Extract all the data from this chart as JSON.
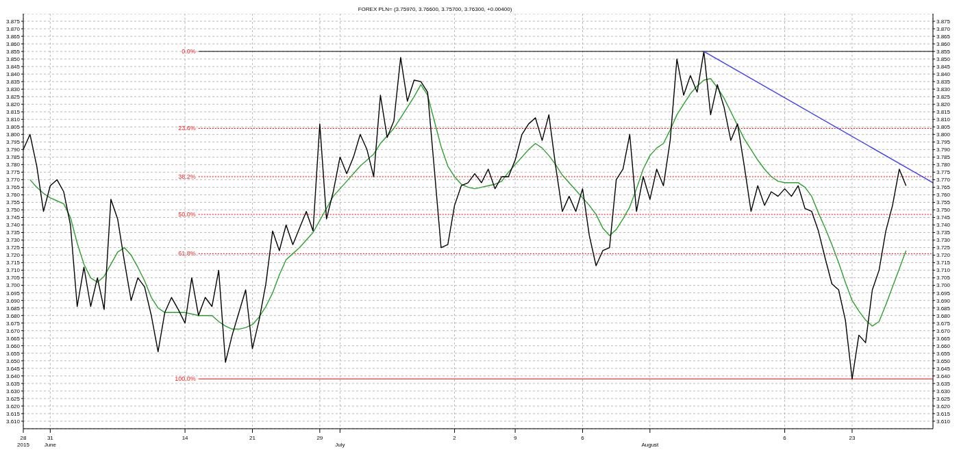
{
  "chart_data": {
    "type": "line",
    "title": "FOREX PLN= (3.75970, 3.76600, 3.75700, 3.76300, +0.00400)",
    "marker": "none",
    "grid": true,
    "categories": [
      "28\n2015",
      null,
      null,
      null,
      "31\nJune",
      null,
      null,
      null,
      null,
      null,
      null,
      null,
      null,
      null,
      null,
      null,
      null,
      null,
      null,
      null,
      null,
      null,
      null,
      null,
      "14",
      null,
      null,
      null,
      null,
      null,
      null,
      null,
      null,
      null,
      "21",
      null,
      null,
      null,
      null,
      null,
      null,
      null,
      null,
      null,
      "29",
      null,
      null,
      "\nJuly",
      null,
      null,
      null,
      null,
      null,
      null,
      null,
      null,
      null,
      null,
      null,
      null,
      null,
      null,
      null,
      null,
      "2",
      null,
      null,
      null,
      null,
      null,
      null,
      null,
      null,
      "9",
      null,
      null,
      null,
      null,
      null,
      null,
      null,
      null,
      null,
      "6",
      null,
      null,
      null,
      null,
      null,
      null,
      null,
      null,
      null,
      "\nAugust",
      null,
      null,
      null,
      null,
      null,
      null,
      null,
      null,
      null,
      null,
      null,
      null,
      null,
      null,
      null,
      null,
      null,
      null,
      null,
      "6",
      null,
      null,
      null,
      null,
      null,
      null,
      null,
      null,
      null,
      "23",
      null,
      null,
      null,
      null,
      null,
      null,
      null,
      null,
      null,
      null,
      null,
      null
    ],
    "ylim": [
      3.605,
      3.88
    ],
    "yticks": [
      {
        "value": 3.61,
        "label": "3.610"
      },
      {
        "value": 3.615,
        "label": "3.615"
      },
      {
        "value": 3.62,
        "label": "3.620"
      },
      {
        "value": 3.625,
        "label": "3.625"
      },
      {
        "value": 3.63,
        "label": "3.630"
      },
      {
        "value": 3.635,
        "label": "3.635"
      },
      {
        "value": 3.64,
        "label": "3.640"
      },
      {
        "value": 3.645,
        "label": "3.645"
      },
      {
        "value": 3.65,
        "label": "3.650"
      },
      {
        "value": 3.655,
        "label": "3.655"
      },
      {
        "value": 3.66,
        "label": "3.660"
      },
      {
        "value": 3.665,
        "label": "3.665"
      },
      {
        "value": 3.67,
        "label": "3.670"
      },
      {
        "value": 3.675,
        "label": "3.675"
      },
      {
        "value": 3.68,
        "label": "3.680"
      },
      {
        "value": 3.685,
        "label": "3.685"
      },
      {
        "value": 3.69,
        "label": "3.690"
      },
      {
        "value": 3.695,
        "label": "3.695"
      },
      {
        "value": 3.7,
        "label": "3.700"
      },
      {
        "value": 3.705,
        "label": "3.705"
      },
      {
        "value": 3.71,
        "label": "3.710"
      },
      {
        "value": 3.715,
        "label": "3.715"
      },
      {
        "value": 3.72,
        "label": "3.720"
      },
      {
        "value": 3.725,
        "label": "3.725"
      },
      {
        "value": 3.73,
        "label": "3.730"
      },
      {
        "value": 3.735,
        "label": "3.735"
      },
      {
        "value": 3.74,
        "label": "3.740"
      },
      {
        "value": 3.745,
        "label": "3.745"
      },
      {
        "value": 3.75,
        "label": "3.750"
      },
      {
        "value": 3.755,
        "label": "3.755"
      },
      {
        "value": 3.76,
        "label": "3.760"
      },
      {
        "value": 3.765,
        "label": "3.765"
      },
      {
        "value": 3.77,
        "label": "3.770"
      },
      {
        "value": 3.775,
        "label": "3.775"
      },
      {
        "value": 3.78,
        "label": "3.780"
      },
      {
        "value": 3.785,
        "label": "3.785"
      },
      {
        "value": 3.79,
        "label": "3.790"
      },
      {
        "value": 3.795,
        "label": "3.795"
      },
      {
        "value": 3.8,
        "label": "3.800"
      },
      {
        "value": 3.805,
        "label": "3.805"
      },
      {
        "value": 3.81,
        "label": "3.810"
      },
      {
        "value": 3.815,
        "label": "3.815"
      },
      {
        "value": 3.82,
        "label": "3.820"
      },
      {
        "value": 3.825,
        "label": "3.825"
      },
      {
        "value": 3.83,
        "label": "3.830"
      },
      {
        "value": 3.835,
        "label": "3.835"
      },
      {
        "value": 3.84,
        "label": "3.840"
      },
      {
        "value": 3.845,
        "label": "3.845"
      },
      {
        "value": 3.85,
        "label": "3.850"
      },
      {
        "value": 3.855,
        "label": "3.855"
      },
      {
        "value": 3.86,
        "label": "3.860"
      },
      {
        "value": 3.865,
        "label": "3.865"
      },
      {
        "value": 3.87,
        "label": "3.870"
      },
      {
        "value": 3.875,
        "label": "3.875"
      }
    ],
    "y2lim": [
      3.605,
      3.88
    ],
    "y2ticks": [
      {
        "value": 3.61,
        "label": "3.610"
      },
      {
        "value": 3.615,
        "label": "3.615"
      },
      {
        "value": 3.62,
        "label": "3.620"
      },
      {
        "value": 3.625,
        "label": "3.625"
      },
      {
        "value": 3.63,
        "label": "3.630"
      },
      {
        "value": 3.635,
        "label": "3.635"
      },
      {
        "value": 3.64,
        "label": "3.640"
      },
      {
        "value": 3.645,
        "label": "3.645"
      },
      {
        "value": 3.65,
        "label": "3.650"
      },
      {
        "value": 3.655,
        "label": "3.655"
      },
      {
        "value": 3.66,
        "label": "3.660"
      },
      {
        "value": 3.665,
        "label": "3.665"
      },
      {
        "value": 3.67,
        "label": "3.670"
      },
      {
        "value": 3.675,
        "label": "3.675"
      },
      {
        "value": 3.68,
        "label": "3.680"
      },
      {
        "value": 3.685,
        "label": "3.685"
      },
      {
        "value": 3.69,
        "label": "3.690"
      },
      {
        "value": 3.695,
        "label": "3.695"
      },
      {
        "value": 3.7,
        "label": "3.700"
      },
      {
        "value": 3.705,
        "label": "3.705"
      },
      {
        "value": 3.71,
        "label": "3.710"
      },
      {
        "value": 3.715,
        "label": "3.715"
      },
      {
        "value": 3.72,
        "label": "3.720"
      },
      {
        "value": 3.725,
        "label": "3.725"
      },
      {
        "value": 3.73,
        "label": "3.730"
      },
      {
        "value": 3.735,
        "label": "3.735"
      },
      {
        "value": 3.74,
        "label": "3.740"
      },
      {
        "value": 3.745,
        "label": "3.745"
      },
      {
        "value": 3.75,
        "label": "3.750"
      },
      {
        "value": 3.755,
        "label": "3.755"
      },
      {
        "value": 3.76,
        "label": "3.760"
      },
      {
        "value": 3.765,
        "label": "3.765"
      },
      {
        "value": 3.77,
        "label": "3.770"
      },
      {
        "value": 3.775,
        "label": "3.775"
      },
      {
        "value": 3.78,
        "label": "3.780"
      },
      {
        "value": 3.785,
        "label": "3.785"
      },
      {
        "value": 3.79,
        "label": "3.790"
      },
      {
        "value": 3.795,
        "label": "3.795"
      },
      {
        "value": 3.8,
        "label": "3.800"
      },
      {
        "value": 3.805,
        "label": "3.805"
      },
      {
        "value": 3.81,
        "label": "3.810"
      },
      {
        "value": 3.815,
        "label": "3.815"
      },
      {
        "value": 3.82,
        "label": "3.820"
      },
      {
        "value": 3.825,
        "label": "3.825"
      },
      {
        "value": 3.83,
        "label": "3.830"
      },
      {
        "value": 3.835,
        "label": "3.835"
      },
      {
        "value": 3.84,
        "label": "3.840"
      },
      {
        "value": 3.845,
        "label": "3.845"
      },
      {
        "value": 3.85,
        "label": "3.850"
      },
      {
        "value": 3.855,
        "label": "3.855"
      },
      {
        "value": 3.86,
        "label": "3.860"
      },
      {
        "value": 3.865,
        "label": "3.865"
      },
      {
        "value": 3.87,
        "label": "3.870"
      },
      {
        "value": 3.875,
        "label": "3.875"
      }
    ],
    "series": [
      {
        "color": "#ff0000",
        "line_style": "dotted",
        "name": "23.6%",
        "values": [
          null,
          null,
          null,
          null,
          null,
          null,
          null,
          null,
          null,
          null,
          null,
          null,
          null,
          null,
          null,
          null,
          null,
          null,
          null,
          null,
          null,
          null,
          null,
          null,
          null,
          null,
          3.804,
          null,
          null,
          null,
          null,
          null,
          null,
          null,
          null,
          null,
          null,
          null,
          null,
          null,
          null,
          null,
          null,
          null,
          null,
          null,
          null,
          null,
          null,
          null,
          null,
          null,
          null,
          null,
          null,
          null,
          null,
          null,
          null,
          null,
          null,
          null,
          null,
          null,
          null,
          null,
          null,
          null,
          null,
          null,
          null,
          null,
          null,
          null,
          null,
          null,
          null,
          null,
          null,
          null,
          null,
          null,
          null,
          null,
          null,
          null,
          null,
          null,
          null,
          null,
          null,
          null,
          null,
          null,
          null,
          null,
          null,
          null,
          null,
          null,
          null,
          null,
          null,
          null,
          null,
          null,
          null,
          null,
          null,
          null,
          null,
          null,
          null,
          null,
          null,
          null,
          null,
          null,
          null,
          null,
          null,
          null,
          null,
          null,
          null,
          null,
          null,
          null,
          null,
          null,
          null,
          null,
          null,
          null,
          null,
          3.804
        ]
      },
      {
        "color": "#ff0000",
        "line_style": "dotted",
        "name": "38.2%",
        "values": [
          null,
          null,
          null,
          null,
          null,
          null,
          null,
          null,
          null,
          null,
          null,
          null,
          null,
          null,
          null,
          null,
          null,
          null,
          null,
          null,
          null,
          null,
          null,
          null,
          null,
          null,
          3.772,
          null,
          null,
          null,
          null,
          null,
          null,
          null,
          null,
          null,
          null,
          null,
          null,
          null,
          null,
          null,
          null,
          null,
          null,
          null,
          null,
          null,
          null,
          null,
          null,
          null,
          null,
          null,
          null,
          null,
          null,
          null,
          null,
          null,
          null,
          null,
          null,
          null,
          null,
          null,
          null,
          null,
          null,
          null,
          null,
          null,
          null,
          null,
          null,
          null,
          null,
          null,
          null,
          null,
          null,
          null,
          null,
          null,
          null,
          null,
          null,
          null,
          null,
          null,
          null,
          null,
          null,
          null,
          null,
          null,
          null,
          null,
          null,
          null,
          null,
          null,
          null,
          null,
          null,
          null,
          null,
          null,
          null,
          null,
          null,
          null,
          null,
          null,
          null,
          null,
          null,
          null,
          null,
          null,
          null,
          null,
          null,
          null,
          null,
          null,
          null,
          null,
          null,
          null,
          null,
          null,
          null,
          null,
          null,
          3.772
        ]
      },
      {
        "color": "#ff0000",
        "line_style": "dotted",
        "name": "50.0%",
        "values": [
          null,
          null,
          null,
          null,
          null,
          null,
          null,
          null,
          null,
          null,
          null,
          null,
          null,
          null,
          null,
          null,
          null,
          null,
          null,
          null,
          null,
          null,
          null,
          null,
          null,
          null,
          3.747,
          null,
          null,
          null,
          null,
          null,
          null,
          null,
          null,
          null,
          null,
          null,
          null,
          null,
          null,
          null,
          null,
          null,
          null,
          null,
          null,
          null,
          null,
          null,
          null,
          null,
          null,
          null,
          null,
          null,
          null,
          null,
          null,
          null,
          null,
          null,
          null,
          null,
          null,
          null,
          null,
          null,
          null,
          null,
          null,
          null,
          null,
          null,
          null,
          null,
          null,
          null,
          null,
          null,
          null,
          null,
          null,
          null,
          null,
          null,
          null,
          null,
          null,
          null,
          null,
          null,
          null,
          null,
          null,
          null,
          null,
          null,
          null,
          null,
          null,
          null,
          null,
          null,
          null,
          null,
          null,
          null,
          null,
          null,
          null,
          null,
          null,
          null,
          null,
          null,
          null,
          null,
          null,
          null,
          null,
          null,
          null,
          null,
          null,
          null,
          null,
          null,
          null,
          null,
          null,
          null,
          null,
          null,
          null,
          3.747
        ]
      },
      {
        "color": "#ff0000",
        "line_style": "dotted",
        "name": "61.8%",
        "values": [
          null,
          null,
          null,
          null,
          null,
          null,
          null,
          null,
          null,
          null,
          null,
          null,
          null,
          null,
          null,
          null,
          null,
          null,
          null,
          null,
          null,
          null,
          null,
          null,
          null,
          null,
          3.721,
          null,
          null,
          null,
          null,
          null,
          null,
          null,
          null,
          null,
          null,
          null,
          null,
          null,
          null,
          null,
          null,
          null,
          null,
          null,
          null,
          null,
          null,
          null,
          null,
          null,
          null,
          null,
          null,
          null,
          null,
          null,
          null,
          null,
          null,
          null,
          null,
          null,
          null,
          null,
          null,
          null,
          null,
          null,
          null,
          null,
          null,
          null,
          null,
          null,
          null,
          null,
          null,
          null,
          null,
          null,
          null,
          null,
          null,
          null,
          null,
          null,
          null,
          null,
          null,
          null,
          null,
          null,
          null,
          null,
          null,
          null,
          null,
          null,
          null,
          null,
          null,
          null,
          null,
          null,
          null,
          null,
          null,
          null,
          null,
          null,
          null,
          null,
          null,
          null,
          null,
          null,
          null,
          null,
          null,
          null,
          null,
          null,
          null,
          null,
          null,
          null,
          null,
          null,
          null,
          null,
          null,
          null,
          null,
          3.721
        ]
      },
      {
        "color": "#000000",
        "line_style": "solid",
        "name": "0.0%",
        "values": [
          null,
          null,
          null,
          null,
          null,
          null,
          null,
          null,
          null,
          null,
          null,
          null,
          null,
          null,
          null,
          null,
          null,
          null,
          null,
          null,
          null,
          null,
          null,
          null,
          null,
          null,
          3.855,
          null,
          null,
          null,
          null,
          null,
          null,
          null,
          null,
          null,
          null,
          null,
          null,
          null,
          null,
          null,
          null,
          null,
          null,
          null,
          null,
          null,
          null,
          null,
          null,
          null,
          null,
          null,
          null,
          null,
          null,
          null,
          null,
          null,
          null,
          null,
          null,
          null,
          null,
          null,
          null,
          null,
          null,
          null,
          null,
          null,
          null,
          null,
          null,
          null,
          null,
          null,
          null,
          null,
          null,
          null,
          null,
          null,
          null,
          null,
          null,
          null,
          null,
          null,
          null,
          null,
          null,
          null,
          null,
          null,
          null,
          null,
          null,
          null,
          null,
          null,
          null,
          null,
          null,
          null,
          null,
          null,
          null,
          null,
          null,
          null,
          null,
          null,
          null,
          null,
          null,
          null,
          null,
          null,
          null,
          null,
          null,
          null,
          null,
          null,
          null,
          null,
          null,
          null,
          null,
          null,
          null,
          null,
          null,
          3.855
        ]
      },
      {
        "color": "#ff0000",
        "line_style": "solid",
        "name": "100.0%",
        "values": [
          null,
          null,
          null,
          null,
          null,
          null,
          null,
          null,
          null,
          null,
          null,
          null,
          null,
          null,
          null,
          null,
          null,
          null,
          null,
          null,
          null,
          null,
          null,
          null,
          null,
          null,
          3.638,
          null,
          null,
          null,
          null,
          null,
          null,
          null,
          null,
          null,
          null,
          null,
          null,
          null,
          null,
          null,
          null,
          null,
          null,
          null,
          null,
          null,
          null,
          null,
          null,
          null,
          null,
          null,
          null,
          null,
          null,
          null,
          null,
          null,
          null,
          null,
          null,
          null,
          null,
          null,
          null,
          null,
          null,
          null,
          null,
          null,
          null,
          null,
          null,
          null,
          null,
          null,
          null,
          null,
          null,
          null,
          null,
          null,
          null,
          null,
          null,
          null,
          null,
          null,
          null,
          null,
          null,
          null,
          null,
          null,
          null,
          null,
          null,
          null,
          null,
          null,
          null,
          null,
          null,
          null,
          null,
          null,
          null,
          null,
          null,
          null,
          null,
          null,
          null,
          null,
          null,
          null,
          null,
          null,
          null,
          null,
          null,
          null,
          null,
          null,
          null,
          null,
          null,
          null,
          null,
          null,
          null,
          null,
          null,
          3.638
        ]
      },
      {
        "color": "#2ca02c",
        "values": [
          null,
          3.77,
          3.765,
          3.761,
          3.758,
          3.756,
          3.754,
          3.745,
          3.728,
          3.714,
          3.705,
          3.702,
          3.706,
          3.714,
          3.722,
          3.725,
          3.72,
          3.712,
          3.703,
          3.692,
          3.685,
          3.682,
          3.682,
          3.682,
          3.682,
          3.681,
          3.68,
          3.68,
          3.68,
          3.676,
          3.673,
          3.671,
          3.671,
          3.672,
          3.674,
          3.679,
          3.686,
          3.695,
          3.707,
          3.717,
          3.721,
          3.725,
          3.73,
          3.735,
          3.743,
          3.751,
          3.759,
          3.764,
          3.769,
          3.774,
          3.779,
          3.783,
          3.787,
          3.794,
          3.799,
          3.804,
          3.811,
          3.818,
          3.825,
          3.833,
          3.826,
          3.809,
          3.792,
          3.779,
          3.772,
          3.767,
          3.765,
          3.764,
          3.765,
          3.766,
          3.767,
          3.769,
          3.775,
          3.78,
          3.785,
          3.79,
          3.794,
          3.791,
          3.786,
          3.78,
          3.773,
          3.768,
          3.763,
          3.758,
          3.753,
          3.747,
          3.738,
          3.733,
          3.737,
          3.744,
          3.752,
          3.764,
          3.777,
          3.786,
          3.791,
          3.794,
          3.803,
          3.813,
          3.82,
          3.827,
          3.832,
          3.836,
          3.837,
          3.831,
          3.824,
          3.815,
          3.806,
          3.797,
          3.79,
          3.783,
          3.777,
          3.772,
          3.769,
          3.768,
          3.768,
          3.768,
          3.765,
          3.759,
          3.748,
          3.738,
          3.727,
          3.715,
          3.702,
          3.69,
          3.683,
          3.677,
          3.673,
          3.676,
          3.687,
          3.699,
          3.711,
          3.723,
          null,
          null,
          null,
          null
        ]
      },
      {
        "color": "#000000",
        "values": [
          3.79,
          3.8,
          3.779,
          3.749,
          3.766,
          3.77,
          3.762,
          3.74,
          3.686,
          3.712,
          3.686,
          3.705,
          3.684,
          3.757,
          3.744,
          3.716,
          3.69,
          3.705,
          3.699,
          3.68,
          3.656,
          3.682,
          3.692,
          3.684,
          3.675,
          3.705,
          3.68,
          3.692,
          3.686,
          3.71,
          3.649,
          3.667,
          3.682,
          3.697,
          3.658,
          3.677,
          3.701,
          3.736,
          3.723,
          3.74,
          3.727,
          3.738,
          3.749,
          3.736,
          3.807,
          3.744,
          3.762,
          3.785,
          3.774,
          3.785,
          3.8,
          3.79,
          3.772,
          3.826,
          3.798,
          3.809,
          3.851,
          3.822,
          3.836,
          3.835,
          3.828,
          3.777,
          3.725,
          3.727,
          3.753,
          3.766,
          3.768,
          3.774,
          3.768,
          3.777,
          3.764,
          3.772,
          3.772,
          3.783,
          3.8,
          3.807,
          3.811,
          3.796,
          3.813,
          3.779,
          3.749,
          3.759,
          3.749,
          3.764,
          3.733,
          3.713,
          3.723,
          3.725,
          3.77,
          3.777,
          3.8,
          3.749,
          3.772,
          3.757,
          3.777,
          3.766,
          3.796,
          3.85,
          3.826,
          3.839,
          3.828,
          3.855,
          3.813,
          3.833,
          3.818,
          3.796,
          3.807,
          3.779,
          3.749,
          3.766,
          3.753,
          3.762,
          3.759,
          3.764,
          3.759,
          3.766,
          3.751,
          3.749,
          3.736,
          3.718,
          3.701,
          3.697,
          3.677,
          3.638,
          3.667,
          3.662,
          3.697,
          3.71,
          3.736,
          3.753,
          3.777,
          3.766,
          null,
          null,
          null,
          null
        ]
      },
      {
        "color": "#3b3bff",
        "values": [
          null,
          null,
          null,
          null,
          null,
          null,
          null,
          null,
          null,
          null,
          null,
          null,
          null,
          null,
          null,
          null,
          null,
          null,
          null,
          null,
          null,
          null,
          null,
          null,
          null,
          null,
          null,
          null,
          null,
          null,
          null,
          null,
          null,
          null,
          null,
          null,
          null,
          null,
          null,
          null,
          null,
          null,
          null,
          null,
          null,
          null,
          null,
          null,
          null,
          null,
          null,
          null,
          null,
          null,
          null,
          null,
          null,
          null,
          null,
          null,
          null,
          null,
          null,
          null,
          null,
          null,
          null,
          null,
          null,
          null,
          null,
          null,
          null,
          null,
          null,
          null,
          null,
          null,
          null,
          null,
          null,
          null,
          null,
          null,
          null,
          null,
          null,
          null,
          null,
          null,
          null,
          null,
          null,
          null,
          null,
          null,
          null,
          null,
          null,
          null,
          null,
          3.855,
          null,
          null,
          null,
          null,
          null,
          null,
          null,
          null,
          null,
          null,
          null,
          null,
          null,
          null,
          null,
          null,
          null,
          null,
          null,
          null,
          null,
          null,
          null,
          null,
          null,
          null,
          null,
          null,
          null,
          null,
          null,
          null,
          null,
          3.768
        ]
      }
    ]
  }
}
